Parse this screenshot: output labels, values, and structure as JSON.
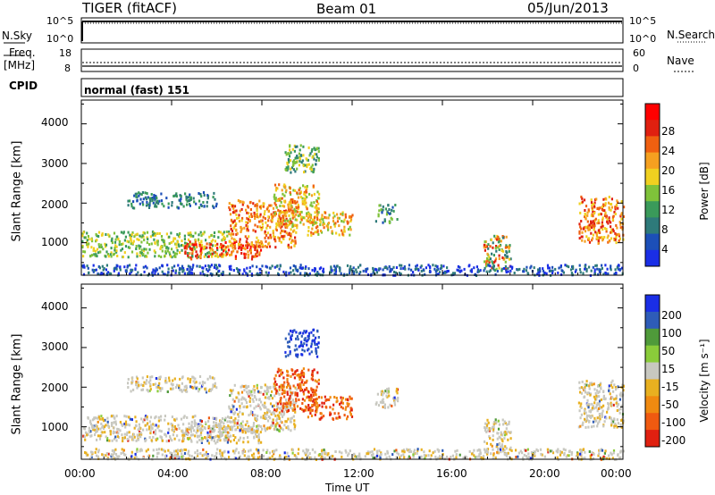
{
  "header": {
    "radar": "TIGER (fitACF)",
    "beam": "Beam 01",
    "date": "05/Jun/2013"
  },
  "top_panels": {
    "nsky_label": "N.Sky",
    "nsearch_label": "N.Search",
    "freq_label": "Freq.",
    "freq_unit": "[MHz]",
    "nave_label": "Nave",
    "cpid_label": "CPID",
    "cpid_value": "normal (fast) 151",
    "noise_ticks": [
      "10^5",
      "10^0"
    ],
    "freq_ticks": [
      "18",
      "8"
    ],
    "nave_ticks": [
      "60",
      "0"
    ]
  },
  "colors": {
    "power": [
      "#1a2ee6",
      "#1c4fb8",
      "#2e7a7a",
      "#3a9a5a",
      "#7fc23a",
      "#f0d020",
      "#f5a020",
      "#f06010",
      "#e02010",
      "#ff0000"
    ],
    "velocity": [
      "#1a2ee6",
      "#2e5cb8",
      "#4f9a3a",
      "#8acc3a",
      "#c8c8c0",
      "#e8b020",
      "#f08a10",
      "#f05a10",
      "#e02010"
    ]
  },
  "chart_data": [
    {
      "type": "heatmap",
      "name_note": "power",
      "ylabel": "Slant Range [km]",
      "xlabel": "Time UT",
      "x_ticks": [
        "00:00",
        "04:00",
        "08:00",
        "12:00",
        "16:00",
        "20:00",
        "00:00"
      ],
      "x_tick_hours": [
        0,
        4,
        8,
        12,
        16,
        20,
        24
      ],
      "xlim": [
        0,
        24
      ],
      "ylim": [
        180,
        4600
      ],
      "y_ticks": [
        1000,
        2000,
        3000,
        4000
      ],
      "colorbar_label": "Power [dB]",
      "colorbar_ticks": [
        "28",
        "24",
        "20",
        "16",
        "12",
        "8",
        "4"
      ],
      "colorbar_range": [
        0,
        32
      ]
    },
    {
      "type": "heatmap",
      "name_note": "velocity",
      "ylabel": "Slant Range [km]",
      "xlabel": "Time UT",
      "x_ticks": [
        "00:00",
        "04:00",
        "08:00",
        "12:00",
        "16:00",
        "20:00",
        "00:00"
      ],
      "x_tick_hours": [
        0,
        4,
        8,
        12,
        16,
        20,
        24
      ],
      "xlim": [
        0,
        24
      ],
      "ylim": [
        180,
        4600
      ],
      "y_ticks": [
        1000,
        2000,
        3000,
        4000
      ],
      "colorbar_label": "Velocity [m s⁻¹]",
      "colorbar_ticks": [
        "200",
        "100",
        "50",
        "15",
        "-15",
        "-50",
        "-100",
        "-200"
      ]
    }
  ],
  "xlabel": "Time UT"
}
